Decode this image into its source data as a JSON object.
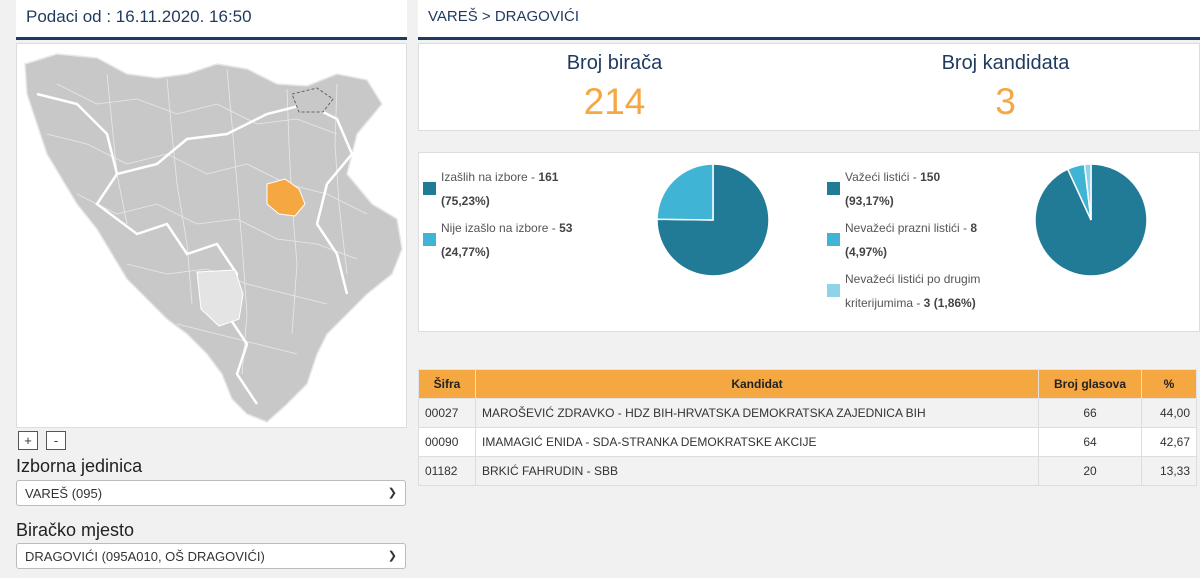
{
  "left": {
    "header": "Podaci od : 16.11.2020. 16:50",
    "zoom_in": "+",
    "zoom_out": "-",
    "unit_label": "Izborna jedinica",
    "unit_value": "VAREŠ (095)",
    "station_label": "Biračko mjesto",
    "station_value": "DRAGOVIĆI (095A010, OŠ DRAGOVIĆI)"
  },
  "right": {
    "breadcrumb": "VAREŠ > DRAGOVIĆI",
    "voters_label": "Broj birača",
    "voters_value": "214",
    "candidates_label": "Broj kandidata",
    "candidates_value": "3"
  },
  "turnout": {
    "items": [
      {
        "label": "Izašlih na izbore - ",
        "count": "161",
        "pct": "(75,23%)",
        "value": 75.23,
        "color": "#217a96"
      },
      {
        "label": "Nije izašlo na izbore - ",
        "count": "53",
        "pct": "(24,77%)",
        "value": 24.77,
        "color": "#40b4d4"
      }
    ]
  },
  "ballots": {
    "items": [
      {
        "label": "Važeći listići - ",
        "count": "150",
        "pct": "(93,17%)",
        "value": 93.17,
        "color": "#217a96"
      },
      {
        "label": "Nevažeći prazni listići - ",
        "count": "8",
        "pct": "(4,97%)",
        "value": 4.97,
        "color": "#40b4d4"
      },
      {
        "label1": "Nevažeći listići po drugim",
        "label2": "kriterijumima - ",
        "count": "3",
        "pct": "(1,86%)",
        "value": 1.86,
        "color": "#8fd3ea"
      }
    ]
  },
  "table": {
    "headers": {
      "code": "Šifra",
      "candidate": "Kandidat",
      "votes": "Broj glasova",
      "pct": "%"
    },
    "rows": [
      {
        "code": "00027",
        "candidate": "MAROŠEVIĆ ZDRAVKO - HDZ BIH-HRVATSKA DEMOKRATSKA ZAJEDNICA BIH",
        "votes": "66",
        "pct": "44,00"
      },
      {
        "code": "00090",
        "candidate": "IMAMAGIĆ ENIDA - SDA-STRANKA DEMOKRATSKE AKCIJE",
        "votes": "64",
        "pct": "42,67"
      },
      {
        "code": "01182",
        "candidate": "BRKIĆ FAHRUDIN - SBB",
        "votes": "20",
        "pct": "13,33"
      }
    ]
  },
  "colors": {
    "navy": "#1f3a5f",
    "orange": "#f5a742",
    "map_gray": "#c8c8c8",
    "map_highlight": "#f5a742"
  }
}
